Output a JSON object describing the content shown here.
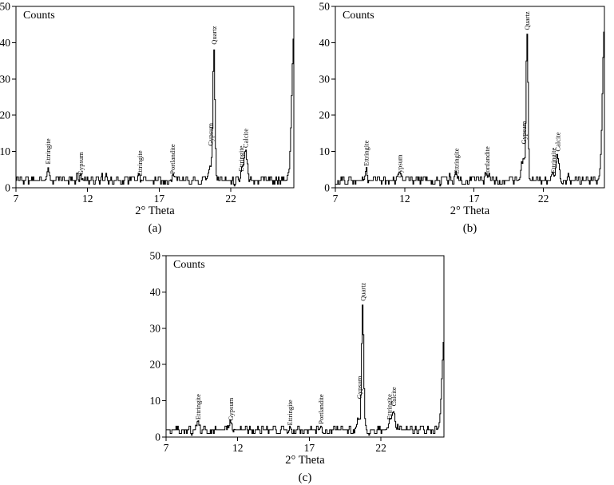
{
  "figure": {
    "background": "#ffffff",
    "line_color": "#000000",
    "panels": [
      {
        "id": "a",
        "caption": "(a)",
        "xlabel": "2° Theta",
        "counts_label": "Counts"
      },
      {
        "id": "b",
        "caption": "(b)",
        "xlabel": "2° Theta",
        "counts_label": "Counts"
      },
      {
        "id": "c",
        "caption": "(c)",
        "xlabel": "2° Theta",
        "counts_label": "Counts"
      }
    ]
  },
  "chart_data": [
    {
      "type": "line",
      "panel": "(a)",
      "title": "Counts",
      "xlabel": "2° Theta",
      "ylabel": "Counts",
      "xlim": [
        7,
        26.4
      ],
      "ylim": [
        0,
        50
      ],
      "xticks": [
        7,
        12,
        17,
        22
      ],
      "yticks": [
        0,
        10,
        20,
        30,
        40,
        50
      ],
      "grid": false,
      "legend": "none",
      "baseline": 2.3,
      "noise_amplitude": 2.2,
      "seed": 11,
      "peaks": [
        {
          "label": "Ettringite",
          "x": 9.2,
          "height": 5,
          "sigma": 0.07,
          "label_y": 6.5
        },
        {
          "label": "Gypsum",
          "x": 11.5,
          "height": 4,
          "sigma": 0.08,
          "label_y": 3.5
        },
        {
          "label": "Ettringite",
          "x": 15.6,
          "height": 3.5,
          "sigma": 0.06,
          "label_y": 3.2
        },
        {
          "label": "Portlandite",
          "x": 17.9,
          "height": 3.5,
          "sigma": 0.06,
          "label_y": 3.8
        },
        {
          "label": "Gypsum",
          "x": 20.55,
          "height": 6,
          "sigma": 0.13,
          "label_y": 11.5
        },
        {
          "label": "Quartz",
          "x": 20.8,
          "height": 38,
          "sigma": 0.07,
          "label_y": 39.5
        },
        {
          "label": "Ettringite",
          "x": 22.7,
          "height": 4.5,
          "sigma": 0.08,
          "label_y": 4.5
        },
        {
          "label": "Calcite",
          "x": 23.0,
          "height": 10,
          "sigma": 0.12,
          "label_y": 11
        }
      ],
      "edge_peak": {
        "x": 26.4,
        "height": 43
      }
    },
    {
      "type": "line",
      "panel": "(b)",
      "title": "Counts",
      "xlabel": "2° Theta",
      "ylabel": "Counts",
      "xlim": [
        7,
        26.4
      ],
      "ylim": [
        0,
        50
      ],
      "xticks": [
        7,
        12,
        17,
        22
      ],
      "yticks": [
        0,
        10,
        20,
        30,
        40,
        50
      ],
      "grid": false,
      "legend": "none",
      "baseline": 2.2,
      "noise_amplitude": 2.2,
      "seed": 29,
      "peaks": [
        {
          "label": "Ettringite",
          "x": 9.2,
          "height": 5,
          "sigma": 0.07,
          "label_y": 6
        },
        {
          "label": "Gypsum",
          "x": 11.6,
          "height": 3.5,
          "sigma": 0.08,
          "label_y": 2.8
        },
        {
          "label": "Ettringite",
          "x": 15.7,
          "height": 4,
          "sigma": 0.06,
          "label_y": 3.8
        },
        {
          "label": "Portlandite",
          "x": 17.9,
          "height": 3.5,
          "sigma": 0.06,
          "label_y": 3.2
        },
        {
          "label": "Gypsum",
          "x": 20.55,
          "height": 8,
          "sigma": 0.13,
          "label_y": 12
        },
        {
          "label": "Quartz",
          "x": 20.8,
          "height": 42,
          "sigma": 0.07,
          "label_y": 43.5
        },
        {
          "label": "Ettringite",
          "x": 22.7,
          "height": 4,
          "sigma": 0.08,
          "label_y": 4
        },
        {
          "label": "Calcite",
          "x": 23.0,
          "height": 8.5,
          "sigma": 0.12,
          "label_y": 10
        }
      ],
      "edge_peak": {
        "x": 26.4,
        "height": 44
      }
    },
    {
      "type": "line",
      "panel": "(c)",
      "title": "Counts",
      "xlabel": "2° Theta",
      "ylabel": "Counts",
      "xlim": [
        7,
        26.4
      ],
      "ylim": [
        0,
        50
      ],
      "xticks": [
        7,
        12,
        17,
        22
      ],
      "yticks": [
        0,
        10,
        20,
        30,
        40,
        50
      ],
      "grid": false,
      "legend": "none",
      "baseline": 2.0,
      "noise_amplitude": 2.2,
      "seed": 47,
      "peaks": [
        {
          "label": "Ettringite",
          "x": 9.2,
          "height": 4.5,
          "sigma": 0.07,
          "label_y": 4.8
        },
        {
          "label": "Gypsum",
          "x": 11.5,
          "height": 4,
          "sigma": 0.1,
          "label_y": 4.5
        },
        {
          "label": "Ettringite",
          "x": 15.6,
          "height": 3,
          "sigma": 0.06,
          "label_y": 3.2
        },
        {
          "label": "Portlandite",
          "x": 17.8,
          "height": 3,
          "sigma": 0.06,
          "label_y": 3.6
        },
        {
          "label": "Gypsum",
          "x": 20.45,
          "height": 5,
          "sigma": 0.13,
          "label_y": 10.5
        },
        {
          "label": "Quartz",
          "x": 20.7,
          "height": 36,
          "sigma": 0.07,
          "label_y": 37.5
        },
        {
          "label": "Ettringite",
          "x": 22.55,
          "height": 4.5,
          "sigma": 0.08,
          "label_y": 4.8
        },
        {
          "label": "Calcite",
          "x": 22.85,
          "height": 7,
          "sigma": 0.14,
          "label_y": 8.5
        }
      ],
      "edge_peak": {
        "x": 26.4,
        "height": 27
      }
    }
  ]
}
